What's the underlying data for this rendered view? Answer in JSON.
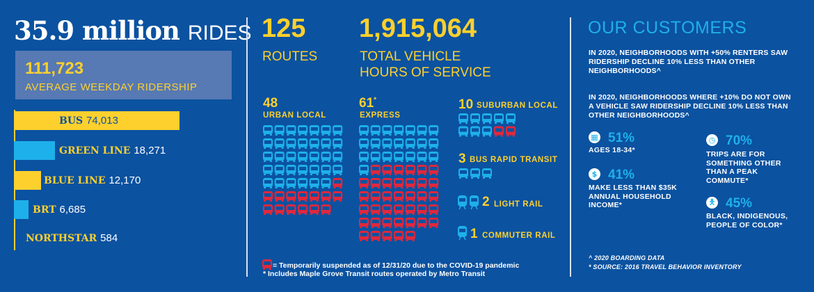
{
  "headline": {
    "value": "35.9 million",
    "unit": "RIDES"
  },
  "weekday": {
    "value": "111,723",
    "label": "AVERAGE WEEKDAY RIDERSHIP"
  },
  "modes": [
    {
      "name": "BUS",
      "value": 74013,
      "display": "74,013",
      "color": "#fdd02e"
    },
    {
      "name": "GREEN LINE",
      "value": 18271,
      "display": "18,271",
      "color": "#1eb0ea"
    },
    {
      "name": "BLUE LINE",
      "value": 12170,
      "display": "12,170",
      "color": "#fdd02e"
    },
    {
      "name": "BRT",
      "value": 6685,
      "display": "6,685",
      "color": "#1eb0ea"
    },
    {
      "name": "NORTHSTAR",
      "value": 584,
      "display": "584",
      "color": "#fdd02e"
    }
  ],
  "routes": {
    "value": "125",
    "label": "ROUTES"
  },
  "hours": {
    "value": "1,915,064",
    "label1": "TOTAL VEHICLE",
    "label2": "HOURS OF SERVICE"
  },
  "route_types": {
    "urban": {
      "count": "48",
      "label": "URBAN LOCAL",
      "active": 34,
      "suspended": 14
    },
    "express": {
      "count": "61",
      "mark": "*",
      "label": "EXPRESS",
      "active": 22,
      "suspended": 39
    },
    "suburban": {
      "count": "10",
      "label": "SUBURBAN LOCAL",
      "active": 8,
      "suspended": 2
    },
    "brt": {
      "count": "3",
      "label": "BUS RAPID TRANSIT",
      "active": 3,
      "suspended": 0
    },
    "light_rail": {
      "count": "2",
      "label": "LIGHT RAIL"
    },
    "commuter_rail": {
      "count": "1",
      "label": "COMMUTER RAIL"
    }
  },
  "colors": {
    "active": "#1eb0ea",
    "suspended": "#e0283c",
    "background": "#0b52a0",
    "accent": "#fdd02e"
  },
  "footnotes": {
    "suspended": "= Temporarily suspended as of 12/31/20 due to the COVID-19 pandemic",
    "express": "* Includes Maple Grove Transit routes operated by Metro Transit"
  },
  "customers": {
    "title": "OUR CUSTOMERS",
    "p1": "IN 2020, NEIGHBORHOODS WITH +50% RENTERS SAW RIDERSHIP DECLINE 10% LESS THAN OTHER NEIGHBORHOODS^",
    "p2": "IN 2020, NEIGHBORHOODS WHERE +10% DO NOT OWN A VEHICLE SAW RIDERSHIP DECLINE 10% LESS THAN OTHER NEIGHBORHOODS^",
    "stats": [
      {
        "icon": "calendar-icon",
        "pct": "51%",
        "text": "AGES 18-34*"
      },
      {
        "icon": "dollar-icon",
        "pct": "41%",
        "text": "MAKE LESS THAN $35K ANNUAL HOUSEHOLD INCOME*"
      },
      {
        "icon": "clock-icon",
        "pct": "70%",
        "text": "TRIPS ARE FOR SOMETHING OTHER THAN A PEAK COMMUTE*"
      },
      {
        "icon": "person-icon",
        "pct": "45%",
        "text": "BLACK, INDIGENOUS, PEOPLE OF COLOR*"
      }
    ],
    "note1": "^ 2020 BOARDING DATA",
    "note2": "* SOURCE: 2016 TRAVEL BEHAVIOR INVENTORY"
  }
}
